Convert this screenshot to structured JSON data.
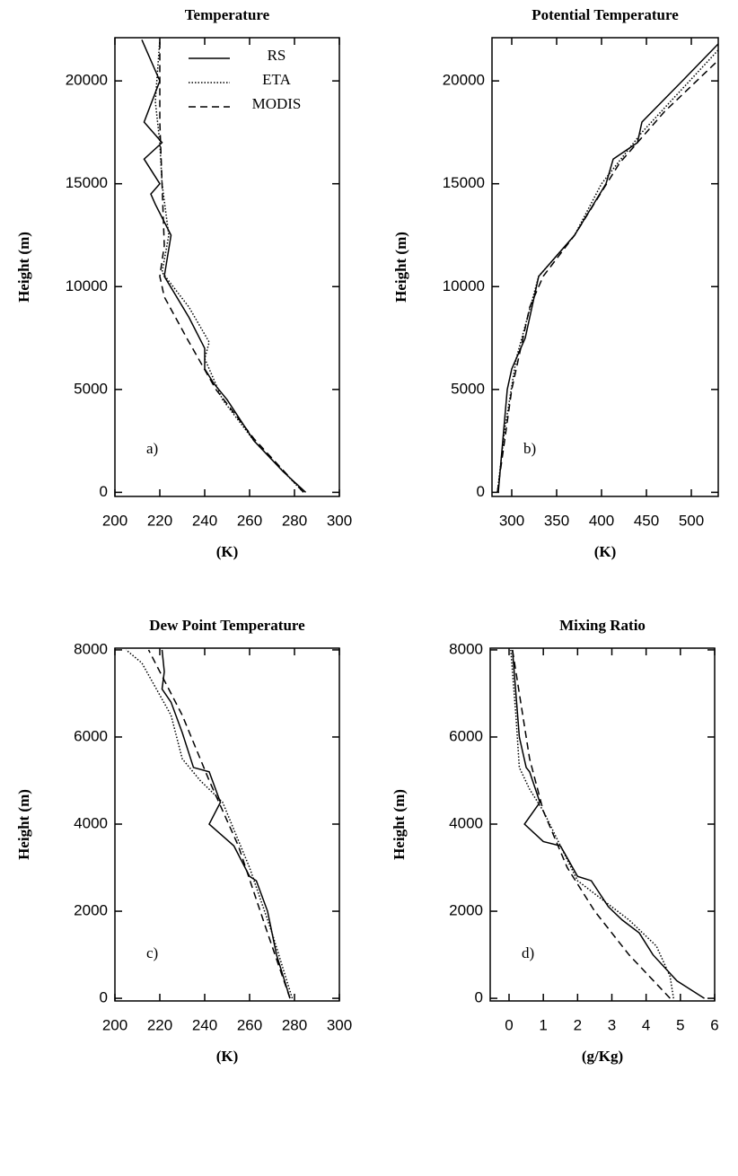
{
  "chart_data": [
    {
      "type": "line",
      "title": "Temperature",
      "xlabel": "(K)",
      "ylabel": "Height (m)",
      "panel_label": "a)",
      "legend": "upper right",
      "xlim": [
        200,
        300
      ],
      "ylim": [
        -200,
        22100
      ],
      "xticks": [
        200,
        220,
        240,
        260,
        280,
        300
      ],
      "yticks": [
        0,
        5000,
        10000,
        15000,
        20000
      ],
      "series": [
        {
          "name": "RS",
          "color": "#000000",
          "dash": "solid",
          "x": [
            285,
            275,
            262,
            250,
            244,
            240,
            240,
            233,
            222,
            225,
            218,
            216,
            220,
            213,
            221,
            213,
            220,
            212
          ],
          "values": [
            0,
            1000,
            2500,
            4500,
            5300,
            6000,
            7000,
            8500,
            10500,
            12500,
            14000,
            14500,
            15000,
            16200,
            17000,
            18000,
            20000,
            22000
          ]
        },
        {
          "name": "ETA",
          "color": "#000000",
          "dash": "dotted",
          "x": [
            284,
            262,
            248,
            240,
            242,
            233,
            221,
            224,
            221,
            220,
            218,
            220
          ],
          "values": [
            0,
            2500,
            4500,
            6500,
            7300,
            9000,
            10700,
            12500,
            15000,
            17000,
            19000,
            22000
          ]
        },
        {
          "name": "MODIS",
          "color": "#000000",
          "dash": "dashed",
          "x": [
            284,
            262,
            245,
            232,
            222,
            220,
            222,
            221,
            220,
            220
          ],
          "values": [
            0,
            2600,
            5000,
            7500,
            9500,
            10500,
            12000,
            15000,
            18000,
            22000
          ]
        }
      ]
    },
    {
      "type": "line",
      "title": "Potential Temperature",
      "xlabel": "(K)",
      "ylabel": "Height (m)",
      "panel_label": "b)",
      "xlim": [
        278,
        530
      ],
      "ylim": [
        -200,
        22100
      ],
      "xticks": [
        300,
        350,
        400,
        450,
        500
      ],
      "yticks": [
        0,
        5000,
        10000,
        15000,
        20000
      ],
      "series": [
        {
          "name": "RS",
          "color": "#000000",
          "dash": "solid",
          "x": [
            285,
            290,
            295,
            300,
            315,
            330,
            370,
            398,
            405,
            413,
            440,
            445,
            490,
            530
          ],
          "values": [
            0,
            2500,
            5000,
            6000,
            7500,
            10500,
            12500,
            14500,
            15000,
            16200,
            17000,
            18000,
            20000,
            21800
          ]
        },
        {
          "name": "ETA",
          "color": "#000000",
          "dash": "dotted",
          "x": [
            284,
            292,
            305,
            330,
            370,
            400,
            445,
            530
          ],
          "values": [
            0,
            3000,
            6500,
            10500,
            12500,
            15000,
            17500,
            21500
          ]
        },
        {
          "name": "MODIS",
          "color": "#000000",
          "dash": "dashed",
          "x": [
            284,
            300,
            320,
            335,
            370,
            420,
            470,
            530
          ],
          "values": [
            0,
            5000,
            9000,
            10500,
            12500,
            16000,
            18500,
            21000
          ]
        }
      ]
    },
    {
      "type": "line",
      "title": "Dew Point Temperature",
      "xlabel": "(K)",
      "ylabel": "Height (m)",
      "panel_label": "c)",
      "xlim": [
        200,
        300
      ],
      "ylim": [
        -60,
        8040
      ],
      "xticks": [
        200,
        220,
        240,
        260,
        280,
        300
      ],
      "yticks": [
        0,
        2000,
        4000,
        6000,
        8000
      ],
      "series": [
        {
          "name": "RS",
          "color": "#000000",
          "dash": "solid",
          "x": [
            278,
            272,
            268,
            263,
            260,
            253,
            242,
            247,
            242,
            235,
            230,
            225,
            221,
            222,
            221
          ],
          "values": [
            0,
            1000,
            2000,
            2700,
            2800,
            3500,
            4000,
            4500,
            5200,
            5300,
            6100,
            6800,
            7100,
            7500,
            8000
          ]
        },
        {
          "name": "ETA",
          "color": "#000000",
          "dash": "dotted",
          "x": [
            279,
            270,
            260,
            248,
            238,
            230,
            225,
            212,
            205
          ],
          "values": [
            0,
            1500,
            3000,
            4500,
            5000,
            5500,
            6500,
            7700,
            8000
          ]
        },
        {
          "name": "MODIS",
          "color": "#000000",
          "dash": "dashed",
          "x": [
            278,
            268,
            255,
            242,
            230,
            220,
            215
          ],
          "values": [
            0,
            1500,
            3500,
            5000,
            6500,
            7500,
            8000
          ]
        }
      ]
    },
    {
      "type": "line",
      "title": "Mixing Ratio",
      "xlabel": "(g/Kg)",
      "ylabel": "Height (m)",
      "panel_label": "d)",
      "xlim": [
        -0.55,
        6
      ],
      "ylim": [
        -60,
        8040
      ],
      "xticks": [
        0,
        1,
        2,
        3,
        4,
        5,
        6
      ],
      "yticks": [
        0,
        2000,
        4000,
        6000,
        8000
      ],
      "series": [
        {
          "name": "RS",
          "color": "#000000",
          "dash": "solid",
          "x": [
            5.7,
            4.9,
            4.2,
            3.8,
            3.3,
            2.9,
            2.4,
            2.0,
            1.5,
            1.0,
            0.45,
            0.9,
            0.6,
            0.5,
            0.3,
            0.2,
            0.1
          ],
          "values": [
            0,
            400,
            1000,
            1500,
            1800,
            2100,
            2700,
            2800,
            3500,
            3600,
            4000,
            4500,
            5200,
            5300,
            6000,
            7000,
            8000
          ]
        },
        {
          "name": "ETA",
          "color": "#000000",
          "dash": "dotted",
          "x": [
            4.8,
            4.7,
            4.3,
            3.5,
            2.0,
            1.0,
            0.6,
            0.3,
            0.2,
            0.05
          ],
          "values": [
            0,
            500,
            1200,
            1800,
            2700,
            4300,
            4800,
            5300,
            6500,
            8000
          ]
        },
        {
          "name": "MODIS",
          "color": "#000000",
          "dash": "dashed",
          "x": [
            4.7,
            3.5,
            2.5,
            1.7,
            1.0,
            0.6,
            0.3,
            0.1
          ],
          "values": [
            0,
            1000,
            2000,
            3000,
            4300,
            5500,
            7000,
            8000
          ]
        }
      ]
    }
  ]
}
